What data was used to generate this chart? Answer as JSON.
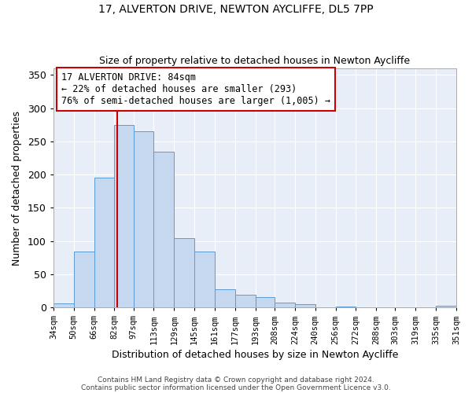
{
  "title1": "17, ALVERTON DRIVE, NEWTON AYCLIFFE, DL5 7PP",
  "title2": "Size of property relative to detached houses in Newton Aycliffe",
  "xlabel": "Distribution of detached houses by size in Newton Aycliffe",
  "ylabel": "Number of detached properties",
  "footer1": "Contains HM Land Registry data © Crown copyright and database right 2024.",
  "footer2": "Contains public sector information licensed under the Open Government Licence v3.0.",
  "bin_labels": [
    "34sqm",
    "50sqm",
    "66sqm",
    "82sqm",
    "97sqm",
    "113sqm",
    "129sqm",
    "145sqm",
    "161sqm",
    "177sqm",
    "193sqm",
    "208sqm",
    "224sqm",
    "240sqm",
    "256sqm",
    "272sqm",
    "288sqm",
    "303sqm",
    "319sqm",
    "335sqm",
    "351sqm"
  ],
  "bar_values": [
    6,
    84,
    195,
    275,
    265,
    235,
    104,
    84,
    27,
    19,
    15,
    7,
    5,
    0,
    1,
    0,
    0,
    0,
    0,
    2
  ],
  "bar_color": "#c5d8f0",
  "bar_edge_color": "#5b9bd5",
  "vline_x": 84,
  "vline_color": "#cc0000",
  "annotation_title": "17 ALVERTON DRIVE: 84sqm",
  "annotation_line2": "← 22% of detached houses are smaller (293)",
  "annotation_line3": "76% of semi-detached houses are larger (1,005) →",
  "annotation_box_color": "#cc0000",
  "ylim": [
    0,
    360
  ],
  "yticks": [
    0,
    50,
    100,
    150,
    200,
    250,
    300,
    350
  ],
  "bin_edges": [
    34,
    50,
    66,
    82,
    97,
    113,
    129,
    145,
    161,
    177,
    193,
    208,
    224,
    240,
    256,
    272,
    288,
    303,
    319,
    335,
    351
  ],
  "plot_bg_color": "#e8eef7",
  "fig_bg_color": "#ffffff"
}
